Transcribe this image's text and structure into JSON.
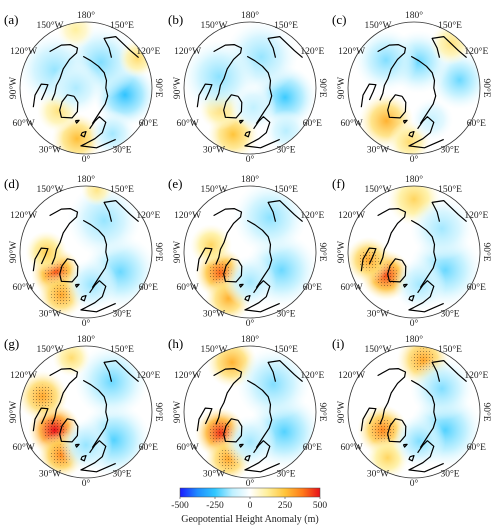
{
  "figure": {
    "panels": [
      {
        "letter": "(a)",
        "anomalies": [
          {
            "lon": -10,
            "r": 0.78,
            "value": 260,
            "size": 0.24
          },
          {
            "lon": -50,
            "r": 0.55,
            "value": 160,
            "size": 0.2
          },
          {
            "lon": 80,
            "r": 0.6,
            "value": -260,
            "size": 0.3
          },
          {
            "lon": 150,
            "r": 0.45,
            "value": -180,
            "size": 0.35
          },
          {
            "lon": -120,
            "r": 0.55,
            "value": -160,
            "size": 0.35
          },
          {
            "lon": -90,
            "r": 0.15,
            "value": -140,
            "size": 0.25
          },
          {
            "lon": 30,
            "r": 0.8,
            "value": -150,
            "size": 0.22
          },
          {
            "lon": 120,
            "r": 0.9,
            "value": 180,
            "size": 0.18
          },
          {
            "lon": -170,
            "r": 0.9,
            "value": 120,
            "size": 0.18
          }
        ]
      },
      {
        "letter": "(b)",
        "anomalies": [
          {
            "lon": -20,
            "r": 0.75,
            "value": 250,
            "size": 0.24
          },
          {
            "lon": -55,
            "r": 0.55,
            "value": 180,
            "size": 0.2
          },
          {
            "lon": 75,
            "r": 0.55,
            "value": -240,
            "size": 0.3
          },
          {
            "lon": 160,
            "r": 0.5,
            "value": -160,
            "size": 0.35
          },
          {
            "lon": -110,
            "r": 0.5,
            "value": -170,
            "size": 0.35
          },
          {
            "lon": 10,
            "r": 0.3,
            "value": -120,
            "size": 0.22
          },
          {
            "lon": 40,
            "r": 0.85,
            "value": -130,
            "size": 0.2
          }
        ]
      },
      {
        "letter": "(c)",
        "anomalies": [
          {
            "lon": -40,
            "r": 0.65,
            "value": 280,
            "size": 0.26
          },
          {
            "lon": -5,
            "r": 0.82,
            "value": 180,
            "size": 0.2
          },
          {
            "lon": 100,
            "r": 0.7,
            "value": -200,
            "size": 0.28
          },
          {
            "lon": 170,
            "r": 0.4,
            "value": -200,
            "size": 0.3
          },
          {
            "lon": -135,
            "r": 0.6,
            "value": -180,
            "size": 0.3
          },
          {
            "lon": 140,
            "r": 0.88,
            "value": 160,
            "size": 0.2
          },
          {
            "lon": 30,
            "r": 0.55,
            "value": -110,
            "size": 0.2
          }
        ]
      },
      {
        "letter": "(d)",
        "anomalies": [
          {
            "lon": -55,
            "r": 0.55,
            "value": 420,
            "size": 0.24
          },
          {
            "lon": -30,
            "r": 0.75,
            "value": 300,
            "size": 0.22
          },
          {
            "lon": -90,
            "r": 0.6,
            "value": 220,
            "size": 0.2
          },
          {
            "lon": 60,
            "r": 0.6,
            "value": -200,
            "size": 0.35
          },
          {
            "lon": 150,
            "r": 0.55,
            "value": -160,
            "size": 0.35
          },
          {
            "lon": 10,
            "r": 0.5,
            "value": -160,
            "size": 0.25
          },
          {
            "lon": 170,
            "r": 0.95,
            "value": 150,
            "size": 0.15
          }
        ]
      },
      {
        "letter": "(e)",
        "anomalies": [
          {
            "lon": -55,
            "r": 0.55,
            "value": 400,
            "size": 0.24
          },
          {
            "lon": -25,
            "r": 0.78,
            "value": 280,
            "size": 0.22
          },
          {
            "lon": -100,
            "r": 0.6,
            "value": 200,
            "size": 0.2
          },
          {
            "lon": 60,
            "r": 0.55,
            "value": -200,
            "size": 0.35
          },
          {
            "lon": 150,
            "r": 0.6,
            "value": -170,
            "size": 0.35
          },
          {
            "lon": 0,
            "r": 0.45,
            "value": -150,
            "size": 0.25
          }
        ]
      },
      {
        "letter": "(f)",
        "anomalies": [
          {
            "lon": -50,
            "r": 0.55,
            "value": 430,
            "size": 0.24
          },
          {
            "lon": -80,
            "r": 0.7,
            "value": 300,
            "size": 0.22
          },
          {
            "lon": 180,
            "r": 0.8,
            "value": 200,
            "size": 0.25
          },
          {
            "lon": 60,
            "r": 0.55,
            "value": -200,
            "size": 0.35
          },
          {
            "lon": 130,
            "r": 0.55,
            "value": -150,
            "size": 0.3
          },
          {
            "lon": 10,
            "r": 0.5,
            "value": -150,
            "size": 0.25
          }
        ]
      },
      {
        "letter": "(g)",
        "anomalies": [
          {
            "lon": -60,
            "r": 0.55,
            "value": 500,
            "size": 0.25
          },
          {
            "lon": -30,
            "r": 0.75,
            "value": 350,
            "size": 0.22
          },
          {
            "lon": -110,
            "r": 0.7,
            "value": 300,
            "size": 0.24
          },
          {
            "lon": 45,
            "r": 0.6,
            "value": -220,
            "size": 0.35
          },
          {
            "lon": 140,
            "r": 0.6,
            "value": -200,
            "size": 0.35
          },
          {
            "lon": 0,
            "r": 0.5,
            "value": -160,
            "size": 0.25
          },
          {
            "lon": -165,
            "r": 0.85,
            "value": 180,
            "size": 0.18
          }
        ]
      },
      {
        "letter": "(h)",
        "anomalies": [
          {
            "lon": -55,
            "r": 0.55,
            "value": 460,
            "size": 0.24
          },
          {
            "lon": -25,
            "r": 0.78,
            "value": 300,
            "size": 0.22
          },
          {
            "lon": -160,
            "r": 0.8,
            "value": 280,
            "size": 0.24
          },
          {
            "lon": 60,
            "r": 0.6,
            "value": -220,
            "size": 0.35
          },
          {
            "lon": 140,
            "r": 0.55,
            "value": -180,
            "size": 0.35
          },
          {
            "lon": 0,
            "r": 0.45,
            "value": -150,
            "size": 0.25
          }
        ]
      },
      {
        "letter": "(i)",
        "anomalies": [
          {
            "lon": -60,
            "r": 0.55,
            "value": 350,
            "size": 0.24
          },
          {
            "lon": 170,
            "r": 0.8,
            "value": 300,
            "size": 0.25
          },
          {
            "lon": -30,
            "r": 0.8,
            "value": 200,
            "size": 0.2
          },
          {
            "lon": 60,
            "r": 0.55,
            "value": -220,
            "size": 0.35
          },
          {
            "lon": 130,
            "r": 0.55,
            "value": -180,
            "size": 0.3
          },
          {
            "lon": 10,
            "r": 0.45,
            "value": -180,
            "size": 0.25
          }
        ]
      }
    ],
    "longitude_labels": [
      {
        "lon": 180,
        "text": "180°"
      },
      {
        "lon": 150,
        "text": "150°E"
      },
      {
        "lon": 120,
        "text": "120°E"
      },
      {
        "lon": 90,
        "text": "90°E"
      },
      {
        "lon": 60,
        "text": "60°E"
      },
      {
        "lon": 30,
        "text": "30°E"
      },
      {
        "lon": 0,
        "text": "0°"
      },
      {
        "lon": -30,
        "text": "30°W"
      },
      {
        "lon": -60,
        "text": "60°W"
      },
      {
        "lon": -90,
        "text": "90°W"
      },
      {
        "lon": -120,
        "text": "120°W"
      },
      {
        "lon": -150,
        "text": "150°W"
      }
    ],
    "colorbar": {
      "title": "Geopotential Height Anomaly (m)",
      "min": -500,
      "max": 500,
      "ticks": [
        "-500",
        "-250",
        "0",
        "250",
        "500"
      ],
      "tick_values": [
        -500,
        -250,
        0,
        250,
        500
      ],
      "stops": [
        "#1a1aff",
        "#1e8cff",
        "#31c8ff",
        "#bff0ff",
        "#ffffff",
        "#ffef9a",
        "#ffc43a",
        "#ff7a1a",
        "#e8101a"
      ]
    }
  }
}
